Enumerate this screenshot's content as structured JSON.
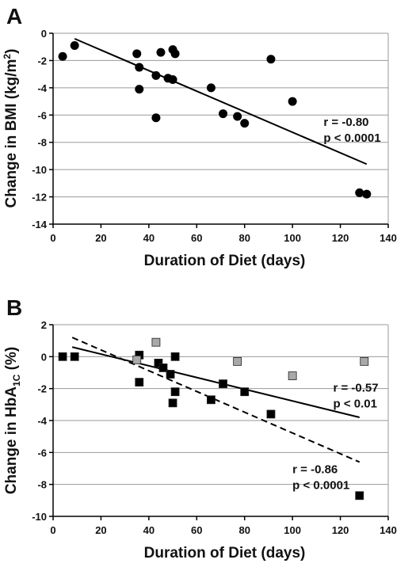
{
  "chart_data": [
    {
      "panel": "A",
      "type": "scatter",
      "xlabel": "Duration of Diet (days)",
      "ylabel_parts": [
        "Change in BMI (kg/m",
        "2",
        ")"
      ],
      "xlim": [
        0,
        140
      ],
      "ylim": [
        -14,
        0
      ],
      "xticks": [
        0,
        20,
        40,
        60,
        80,
        100,
        120,
        140
      ],
      "yticks": [
        0,
        -2,
        -4,
        -6,
        -8,
        -10,
        -12,
        -14
      ],
      "grid": "horizontal",
      "series": [
        {
          "marker": "circle",
          "color": "#000000",
          "points": [
            [
              4,
              -1.7
            ],
            [
              9,
              -0.9
            ],
            [
              35,
              -1.5
            ],
            [
              36,
              -2.5
            ],
            [
              36,
              -4.1
            ],
            [
              43,
              -3.1
            ],
            [
              43,
              -6.2
            ],
            [
              45,
              -1.4
            ],
            [
              48,
              -3.3
            ],
            [
              50,
              -1.2
            ],
            [
              50,
              -3.4
            ],
            [
              51,
              -1.5
            ],
            [
              66,
              -4.0
            ],
            [
              71,
              -5.9
            ],
            [
              77,
              -6.1
            ],
            [
              80,
              -6.6
            ],
            [
              91,
              -1.9
            ],
            [
              100,
              -5.0
            ],
            [
              128,
              -11.7
            ],
            [
              131,
              -11.8
            ]
          ]
        }
      ],
      "trendlines": [
        {
          "style": "solid",
          "from": [
            9,
            -0.4
          ],
          "to": [
            131,
            -9.6
          ]
        }
      ],
      "annotations": [
        {
          "lines": [
            "r = -0.80",
            "p < 0.0001"
          ],
          "anchor": [
            113,
            -6.8
          ]
        }
      ]
    },
    {
      "panel": "B",
      "type": "scatter",
      "xlabel": "Duration of Diet (days)",
      "ylabel_parts": [
        "Change in HbA",
        "1C",
        " (%)"
      ],
      "xlim": [
        0,
        140
      ],
      "ylim": [
        -10,
        2
      ],
      "xticks": [
        0,
        20,
        40,
        60,
        80,
        100,
        120,
        140
      ],
      "yticks": [
        2,
        0,
        -2,
        -4,
        -6,
        -8,
        -10
      ],
      "grid": "horizontal",
      "series": [
        {
          "marker": "square",
          "color": "#000000",
          "points": [
            [
              4,
              0.0
            ],
            [
              9,
              0.0
            ],
            [
              36,
              0.1
            ],
            [
              36,
              -1.6
            ],
            [
              44,
              -0.4
            ],
            [
              46,
              -0.7
            ],
            [
              49,
              -1.1
            ],
            [
              50,
              -2.9
            ],
            [
              51,
              0.0
            ],
            [
              51,
              -2.2
            ],
            [
              66,
              -2.7
            ],
            [
              71,
              -1.7
            ],
            [
              80,
              -2.2
            ],
            [
              91,
              -3.6
            ],
            [
              128,
              -8.7
            ]
          ]
        },
        {
          "marker": "square",
          "color": "#a9a9a9",
          "points": [
            [
              35,
              -0.2
            ],
            [
              43,
              0.9
            ],
            [
              77,
              -0.3
            ],
            [
              100,
              -1.2
            ],
            [
              130,
              -0.3
            ]
          ]
        }
      ],
      "trendlines": [
        {
          "style": "solid",
          "from": [
            8,
            0.6
          ],
          "to": [
            128,
            -3.8
          ]
        },
        {
          "style": "dashed",
          "from": [
            8,
            1.2
          ],
          "to": [
            128,
            -6.6
          ]
        }
      ],
      "annotations": [
        {
          "lines": [
            "r = -0.57",
            "p < 0.01"
          ],
          "anchor": [
            117,
            -2.2
          ]
        },
        {
          "lines": [
            "r = -0.86",
            "p < 0.0001"
          ],
          "anchor": [
            100,
            -7.3
          ]
        }
      ]
    }
  ]
}
